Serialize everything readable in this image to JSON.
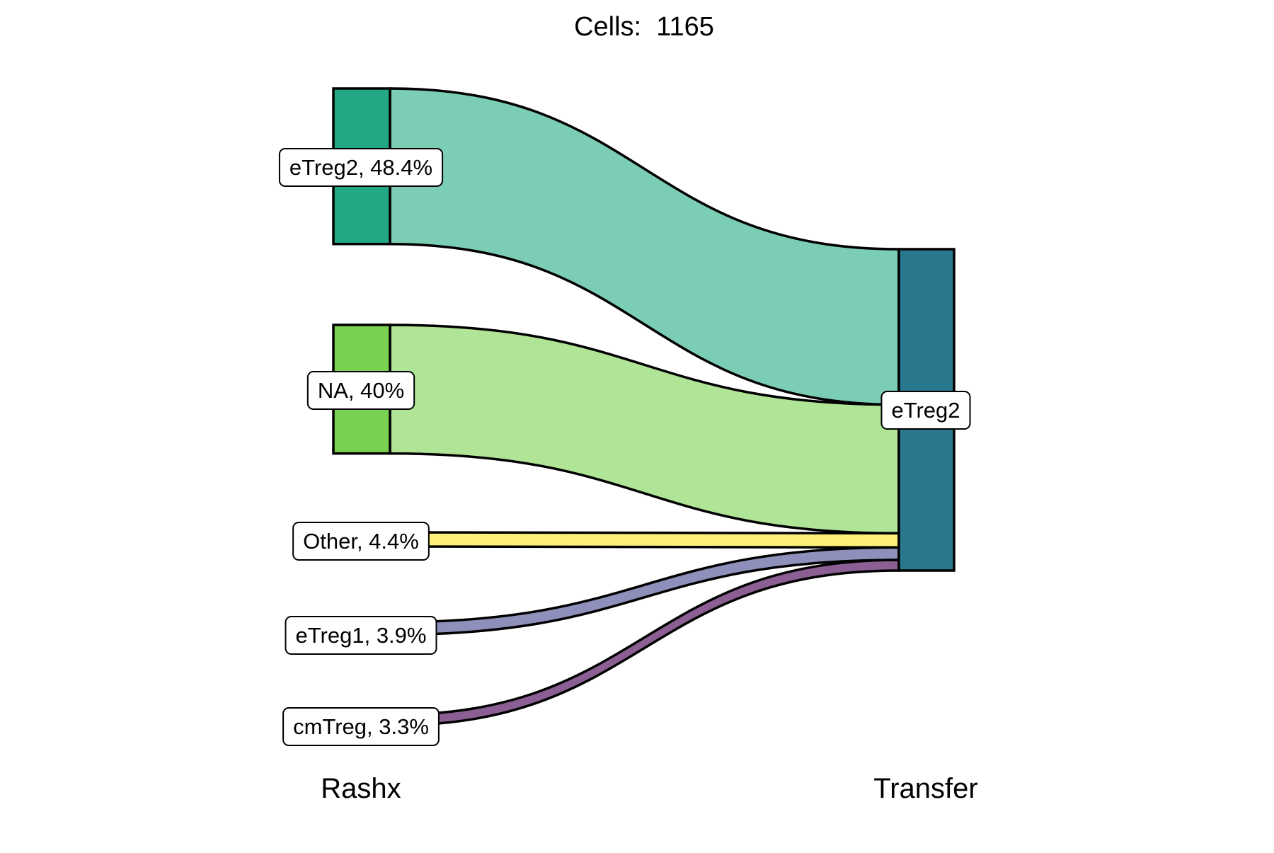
{
  "chart_data": {
    "type": "sankey",
    "title": "Cells:  1165",
    "total_cells": 1165,
    "axes": [
      "Rashx",
      "Transfer"
    ],
    "source_nodes": [
      {
        "name": "eTreg2",
        "percent": 48.4,
        "label": "eTreg2, 48.4%",
        "color": "#22a884",
        "flow_color": "#7bcdb5"
      },
      {
        "name": "NA",
        "percent": 40.0,
        "label": "NA, 40%",
        "color": "#7ad151",
        "flow_color": "#b0e497"
      },
      {
        "name": "Other",
        "percent": 4.4,
        "label": "Other, 4.4%",
        "color": "#fde725",
        "flow_color": "#fcef7a"
      },
      {
        "name": "eTreg1",
        "percent": 3.9,
        "label": "eTreg1, 3.9%",
        "color": "#414487",
        "flow_color": "#8e8fbb"
      },
      {
        "name": "cmTreg",
        "percent": 3.3,
        "label": "cmTreg, 3.3%",
        "color": "#440154",
        "flow_color": "#8b5f93"
      }
    ],
    "target_nodes": [
      {
        "name": "eTreg2",
        "percent": 100.0,
        "label": "eTreg2",
        "color": "#2a788e"
      }
    ],
    "flows": [
      {
        "source": "eTreg2",
        "target": "eTreg2",
        "percent": 48.4
      },
      {
        "source": "NA",
        "target": "eTreg2",
        "percent": 40.0
      },
      {
        "source": "Other",
        "target": "eTreg2",
        "percent": 4.4
      },
      {
        "source": "eTreg1",
        "target": "eTreg2",
        "percent": 3.9
      },
      {
        "source": "cmTreg",
        "target": "eTreg2",
        "percent": 3.3
      }
    ]
  }
}
